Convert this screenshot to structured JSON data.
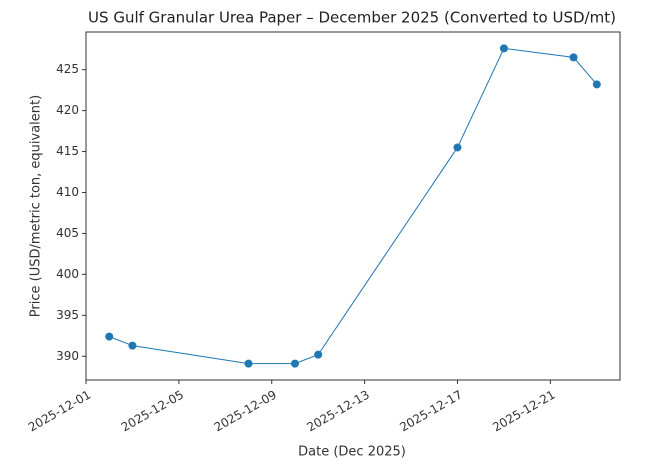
{
  "chart_data": {
    "type": "line",
    "title": "US Gulf Granular Urea Paper – December 2025 (Converted to USD/mt)",
    "xlabel": "Date (Dec 2025)",
    "ylabel": "Price (USD/metric ton, equivalent)",
    "x": [
      "2025-12-02",
      "2025-12-03",
      "2025-12-08",
      "2025-12-10",
      "2025-12-11",
      "2025-12-17",
      "2025-12-19",
      "2025-12-22",
      "2025-12-23"
    ],
    "values": [
      392.4,
      391.3,
      389.1,
      389.1,
      390.2,
      415.5,
      427.6,
      426.5,
      423.2
    ],
    "color": "#1f77b4",
    "xlim": [
      "2025-12-01",
      "2025-12-24"
    ],
    "xticks": [
      "2025-12-01",
      "2025-12-05",
      "2025-12-09",
      "2025-12-13",
      "2025-12-17",
      "2025-12-21"
    ],
    "ylim": [
      387.1,
      429.6
    ],
    "yticks": [
      390,
      395,
      400,
      405,
      410,
      415,
      420,
      425
    ],
    "grid": false
  }
}
